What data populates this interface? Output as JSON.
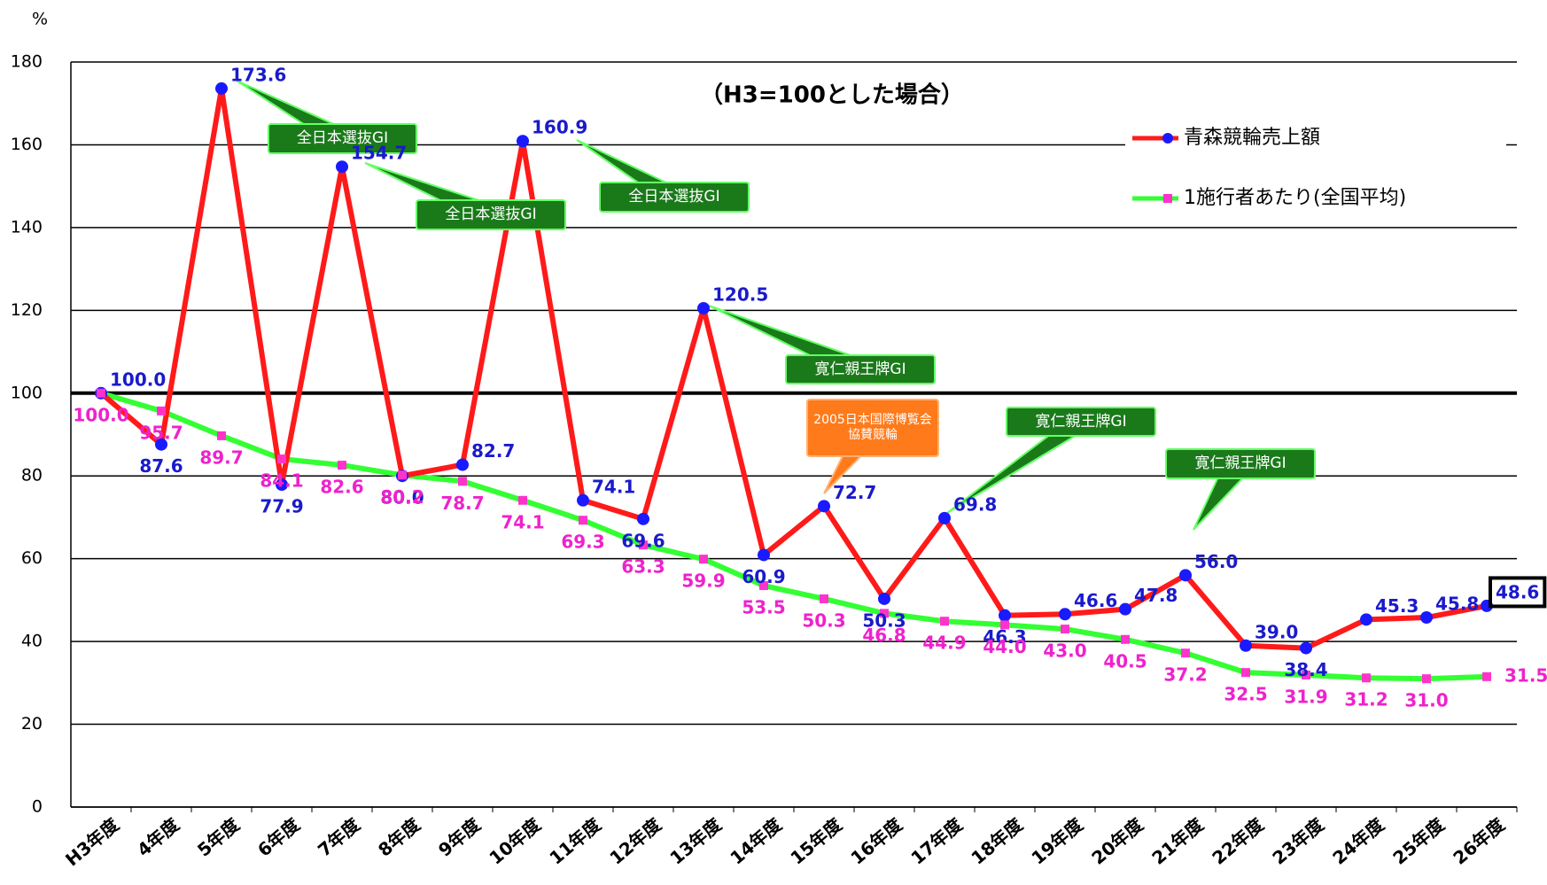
{
  "chart_data": {
    "type": "line",
    "subtitle": "（H3=100とした場合）",
    "y_label": "%",
    "categories": [
      "H3年度",
      "4年度",
      "5年度",
      "6年度",
      "7年度",
      "8年度",
      "9年度",
      "10年度",
      "11年度",
      "12年度",
      "13年度",
      "14年度",
      "15年度",
      "16年度",
      "17年度",
      "18年度",
      "19年度",
      "20年度",
      "21年度",
      "22年度",
      "23年度",
      "24年度",
      "25年度",
      "26年度"
    ],
    "series": [
      {
        "name": "青森競輪売上額",
        "color": "#ff1a1a",
        "marker_color": "#1a1aff",
        "label_color": "#1a1acc",
        "values": [
          100.0,
          87.6,
          173.6,
          77.9,
          154.7,
          80.0,
          82.7,
          160.9,
          74.1,
          69.6,
          120.5,
          60.9,
          72.7,
          50.3,
          69.8,
          46.3,
          46.6,
          47.8,
          56.0,
          39.0,
          38.4,
          45.3,
          45.8,
          48.6
        ],
        "value_labels": [
          "100.0",
          "87.6",
          "173.6",
          "77.9",
          "154.7",
          "80.0",
          "82.7",
          "160.9",
          "74.1",
          "69.6",
          "120.5",
          "60.9",
          "72.7",
          "50.3",
          "69.8",
          "46.3",
          "46.6",
          "47.8",
          "56.0",
          "39.0",
          "38.4",
          "45.3",
          "45.8",
          "48.6"
        ]
      },
      {
        "name": "1施行者あたり(全国平均)",
        "color": "#33ff33",
        "marker_color": "#ff33cc",
        "label_color": "#ee22cc",
        "values": [
          100.0,
          95.7,
          89.7,
          84.1,
          82.6,
          80.2,
          78.7,
          74.1,
          69.3,
          63.3,
          59.9,
          53.5,
          50.3,
          46.8,
          44.9,
          44.0,
          43.0,
          40.5,
          37.2,
          32.5,
          31.9,
          31.2,
          31.0,
          31.5
        ],
        "value_labels": [
          "100.0",
          "95.7",
          "89.7",
          "84.1",
          "82.6",
          "80.2",
          "78.7",
          "74.1",
          "69.3",
          "63.3",
          "59.9",
          "53.5",
          "50.3",
          "46.8",
          "44.9",
          "44.0",
          "43.0",
          "40.5",
          "37.2",
          "32.5",
          "31.9",
          "31.2",
          "31.0",
          "31.5"
        ]
      }
    ],
    "ylim": [
      0,
      180
    ],
    "yticks": [
      0,
      20,
      40,
      60,
      80,
      100,
      120,
      140,
      160,
      180
    ],
    "grid": true,
    "reference_line": 100,
    "legend": "top-right",
    "annotations": [
      "全日本選抜GⅠ",
      "全日本選抜GⅠ",
      "全日本選抜GⅠ",
      "寛仁親王牌GⅠ",
      "2005日本国際博覧会協賛競輪",
      "寛仁親王牌GⅠ",
      "寛仁親王牌GⅠ"
    ]
  }
}
